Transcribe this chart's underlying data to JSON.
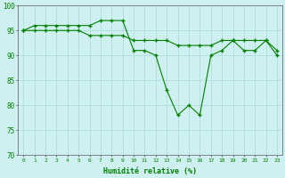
{
  "line1": [
    95,
    96,
    96,
    96,
    96,
    96,
    96,
    97,
    97,
    97,
    91,
    91,
    90,
    83,
    78,
    80,
    78,
    90,
    91,
    93,
    91,
    91,
    93,
    90
  ],
  "line2": [
    95,
    95,
    95,
    95,
    95,
    95,
    94,
    94,
    94,
    94,
    93,
    93,
    93,
    93,
    92,
    92,
    92,
    92,
    93,
    93,
    93,
    93,
    93,
    91
  ],
  "x": [
    0,
    1,
    2,
    3,
    4,
    5,
    6,
    7,
    8,
    9,
    10,
    11,
    12,
    13,
    14,
    15,
    16,
    17,
    18,
    19,
    20,
    21,
    22,
    23
  ],
  "xlabel": "Humidité relative (%)",
  "ylim": [
    70,
    100
  ],
  "xlim": [
    -0.5,
    23.5
  ],
  "yticks": [
    70,
    75,
    80,
    85,
    90,
    95,
    100
  ],
  "xticks": [
    0,
    1,
    2,
    3,
    4,
    5,
    6,
    7,
    8,
    9,
    10,
    11,
    12,
    13,
    14,
    15,
    16,
    17,
    18,
    19,
    20,
    21,
    22,
    23
  ],
  "line_color": "#008000",
  "marker": "+",
  "markersize": 3.5,
  "linewidth": 0.8,
  "bg_color": "#cff0f0",
  "grid_color": "#aadada",
  "axis_color": "#707070",
  "tick_color": "#008000",
  "label_color": "#008000"
}
